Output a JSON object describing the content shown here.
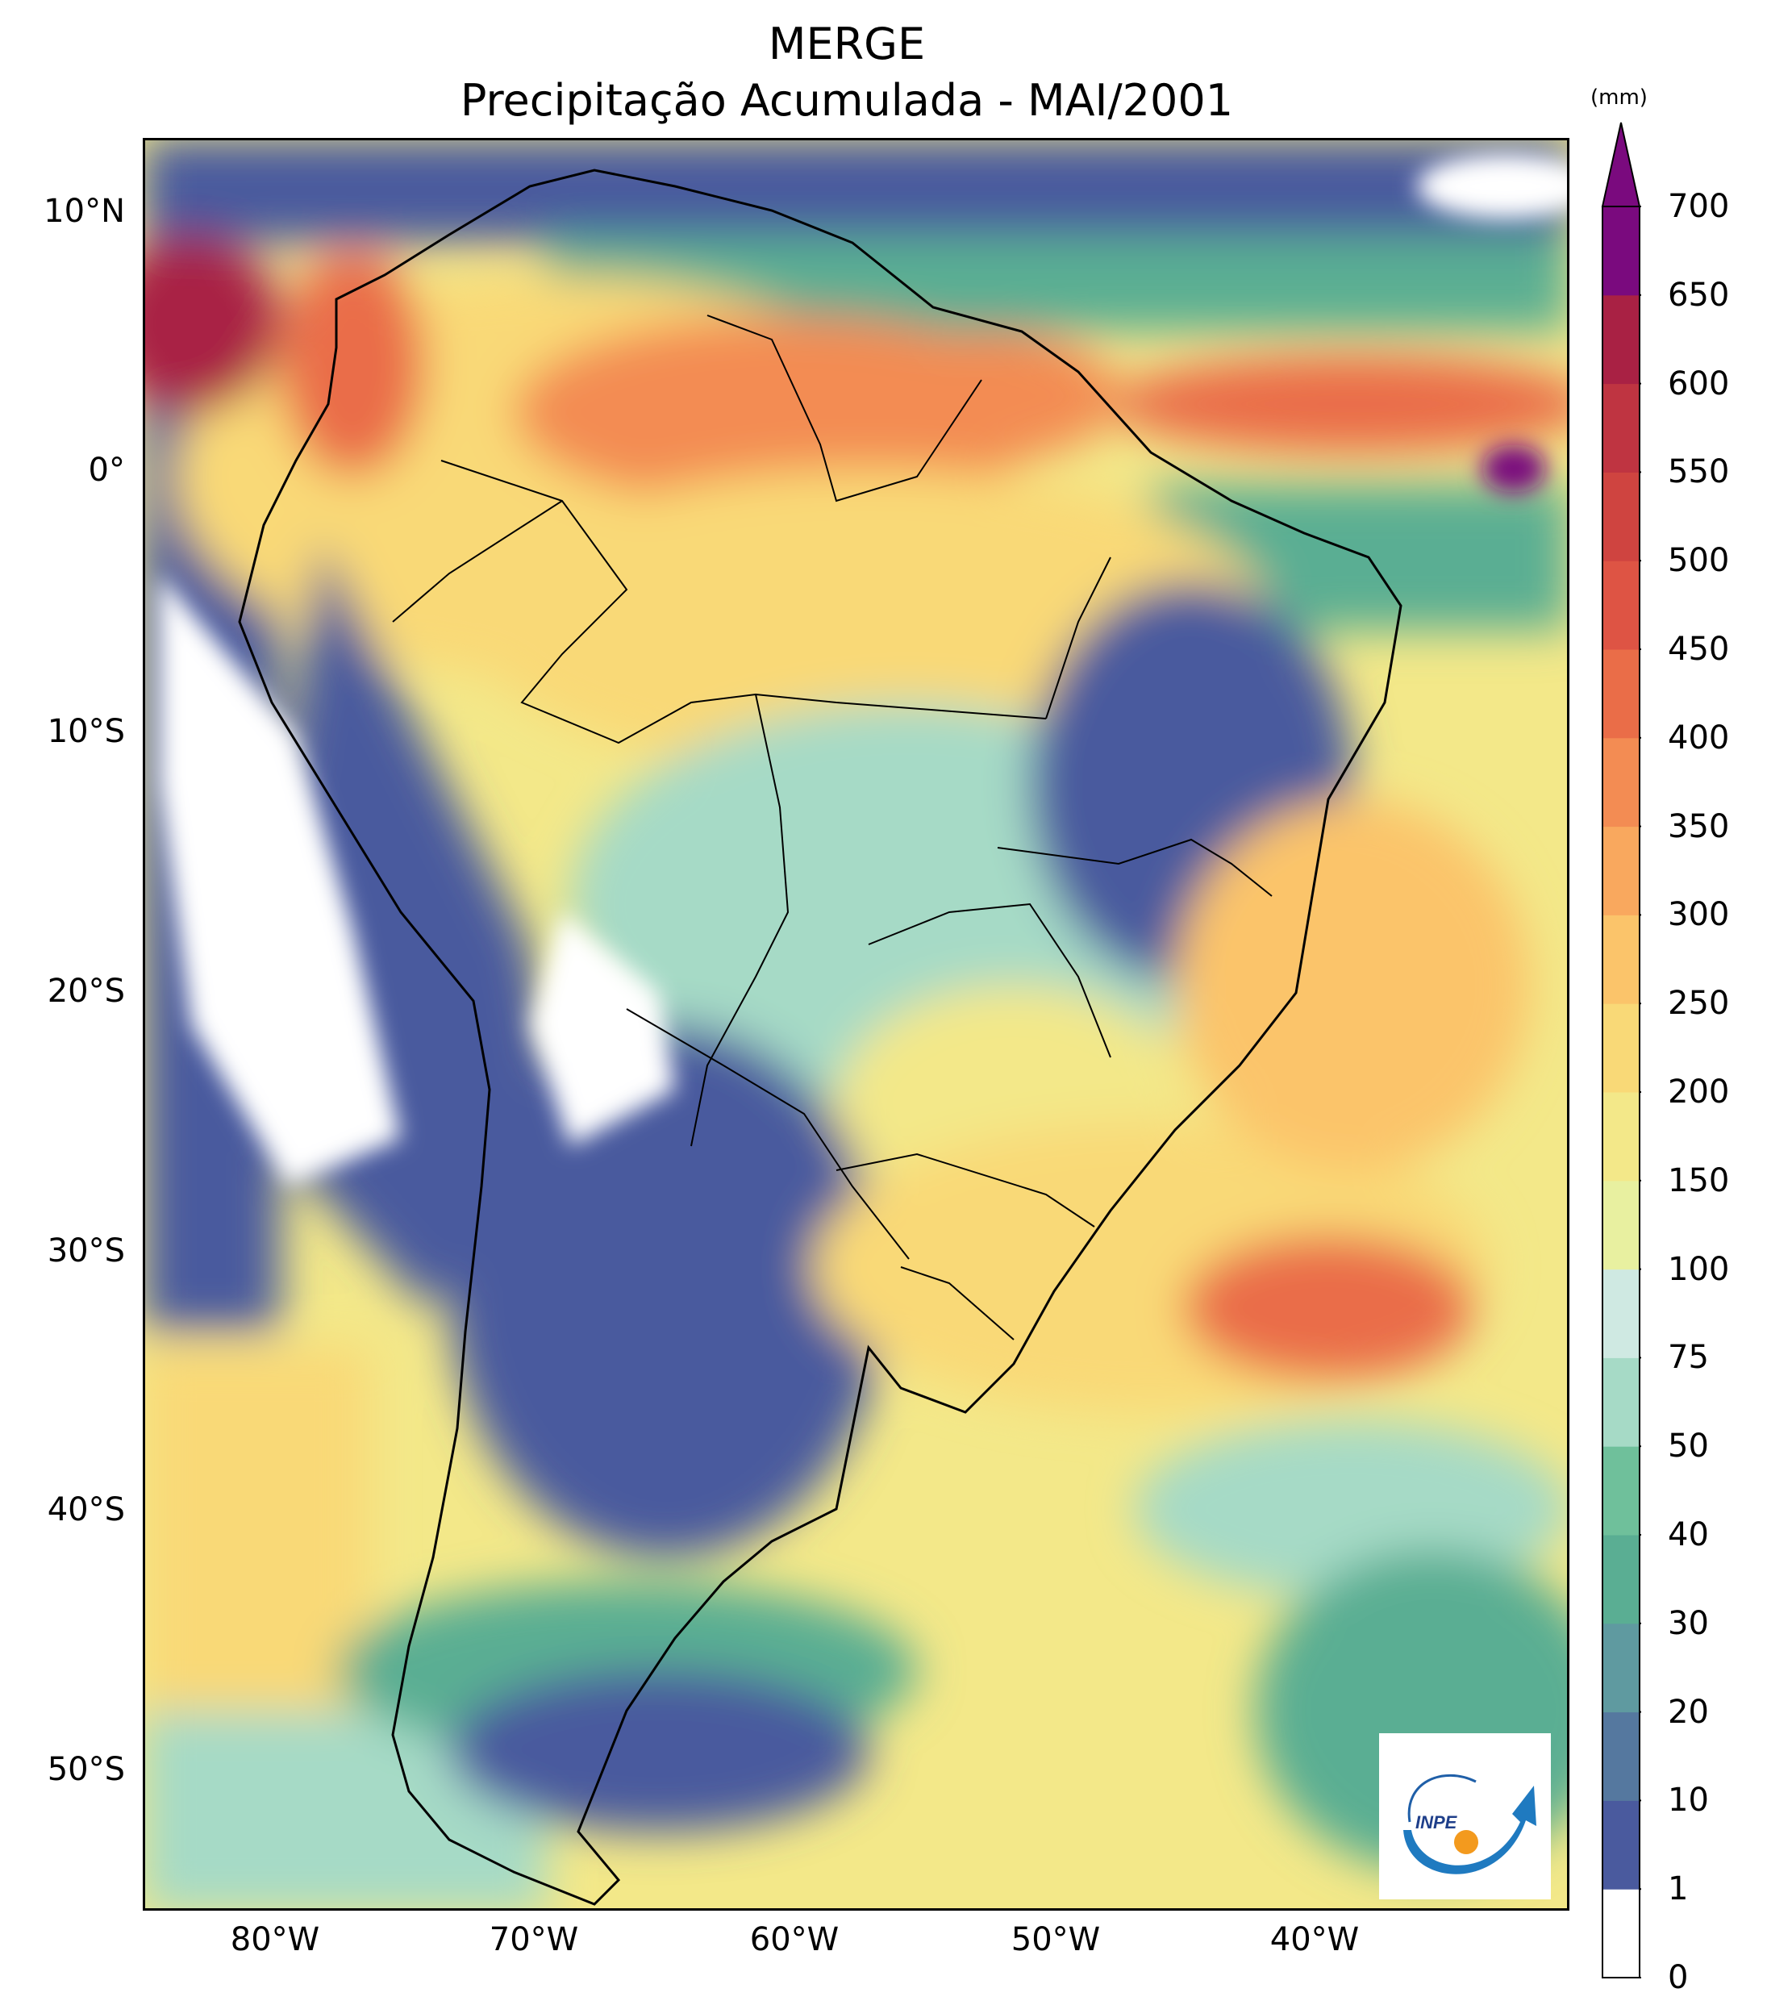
{
  "title": {
    "line1": "MERGE",
    "line2": "Precipitação Acumulada - MAI/2001"
  },
  "map": {
    "region": "South America",
    "lat_ticks": [
      "10°N",
      "0°",
      "10°S",
      "20°S",
      "30°S",
      "40°S",
      "50°S"
    ],
    "lon_ticks": [
      "80°W",
      "70°W",
      "60°W",
      "50°W",
      "40°W"
    ],
    "extent_degrees": {
      "lon": [
        -85,
        -30
      ],
      "lat": [
        -56,
        12.5
      ]
    },
    "notes": "Monthly accumulated precipitation field with country and Brazilian state borders"
  },
  "colorbar": {
    "unit": "(mm)",
    "levels": [
      "0",
      "1",
      "10",
      "20",
      "30",
      "40",
      "50",
      "75",
      "100",
      "150",
      "200",
      "250",
      "300",
      "350",
      "400",
      "450",
      "500",
      "550",
      "600",
      "650",
      "700"
    ],
    "colors": [
      "#ffffff",
      "#4a5a9e",
      "#55789f",
      "#5f9aa0",
      "#5aae93",
      "#6fc09b",
      "#a6dac6",
      "#cfe9e2",
      "#e8f0a0",
      "#f3e889",
      "#f9d977",
      "#fbc46a",
      "#f9a85e",
      "#f38c53",
      "#ea6d48",
      "#de5444",
      "#cf4440",
      "#bf3441",
      "#a92144",
      "#7a0a7e"
    ],
    "extend": "max"
  },
  "logo": {
    "text": "INPE"
  }
}
